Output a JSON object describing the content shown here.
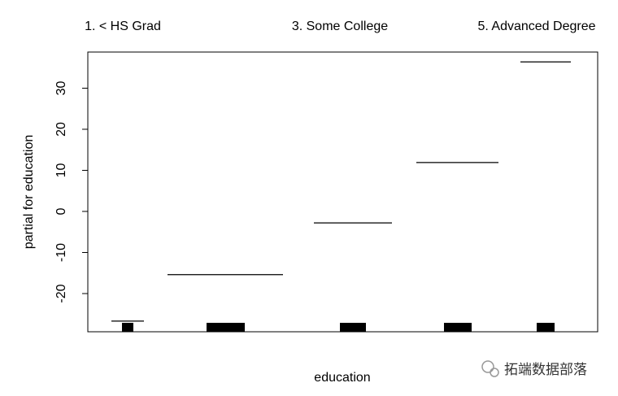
{
  "chart_data": {
    "type": "step-partial",
    "categories": [
      "1. < HS Grad",
      null,
      "3. Some College",
      null,
      "5. Advanced Degree"
    ],
    "values": [
      -26.7,
      -15.4,
      -2.8,
      11.9,
      36.4
    ],
    "color": "#000000",
    "x_label": "education",
    "y_label": "partial for education",
    "ylim": [
      -29.3,
      38.8
    ],
    "yticks": [
      -20,
      -10,
      0,
      10,
      20,
      30
    ],
    "watermark": "拓端数据部落"
  }
}
